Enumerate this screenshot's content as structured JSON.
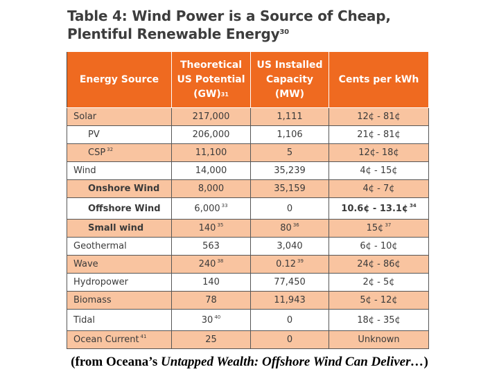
{
  "title": {
    "line1": "Table 4: Wind Power is a Source of Cheap,",
    "line2": "Plentiful Renewable Energy",
    "footnote": "30"
  },
  "table": {
    "headers": [
      {
        "line1": "Energy Source",
        "line2": "",
        "line3": "",
        "note": ""
      },
      {
        "line1": "Theoretical",
        "line2": "US Potential",
        "line3": "(GW)",
        "note": "31"
      },
      {
        "line1": "US Installed",
        "line2": "Capacity",
        "line3": "(MW)",
        "note": ""
      },
      {
        "line1": "Cents per kWh",
        "line2": "",
        "line3": "",
        "note": ""
      }
    ],
    "rows": [
      {
        "source": "Solar",
        "source_note": "",
        "potential": "217,000",
        "potential_note": "",
        "capacity": "1,111",
        "capacity_note": "",
        "cents": "12¢ - 81¢",
        "cents_note": ""
      },
      {
        "source": "PV",
        "source_note": "",
        "potential": "206,000",
        "potential_note": "",
        "capacity": "1,106",
        "capacity_note": "",
        "cents": "21¢ - 81¢",
        "cents_note": ""
      },
      {
        "source": "CSP",
        "source_note": "32",
        "potential": "11,100",
        "potential_note": "",
        "capacity": "5",
        "capacity_note": "",
        "cents": "12¢- 18¢",
        "cents_note": ""
      },
      {
        "source": "Wind",
        "source_note": "",
        "potential": "14,000",
        "potential_note": "",
        "capacity": "35,239",
        "capacity_note": "",
        "cents": "4¢ - 15¢",
        "cents_note": ""
      },
      {
        "source": "Onshore Wind",
        "source_note": "",
        "potential": "8,000",
        "potential_note": "",
        "capacity": "35,159",
        "capacity_note": "",
        "cents": "4¢ - 7¢",
        "cents_note": ""
      },
      {
        "source": "Offshore Wind",
        "source_note": "",
        "potential": "6,000",
        "potential_note": "33",
        "capacity": "0",
        "capacity_note": "",
        "cents": "10.6¢ - 13.1¢",
        "cents_note": "34"
      },
      {
        "source": "Small wind",
        "source_note": "",
        "potential": "140",
        "potential_note": "35",
        "capacity": "80",
        "capacity_note": "36",
        "cents": "15¢",
        "cents_note": "37"
      },
      {
        "source": "Geothermal",
        "source_note": "",
        "potential": "563",
        "potential_note": "",
        "capacity": "3,040",
        "capacity_note": "",
        "cents": "6¢ - 10¢",
        "cents_note": ""
      },
      {
        "source": "Wave",
        "source_note": "",
        "potential": "240",
        "potential_note": "38",
        "capacity": "0.12",
        "capacity_note": "39",
        "cents": "24¢ - 86¢",
        "cents_note": ""
      },
      {
        "source": "Hydropower",
        "source_note": "",
        "potential": "140",
        "potential_note": "",
        "capacity": "77,450",
        "capacity_note": "",
        "cents": "2¢ - 5¢",
        "cents_note": ""
      },
      {
        "source": "Biomass",
        "source_note": "",
        "potential": "78",
        "potential_note": "",
        "capacity": "11,943",
        "capacity_note": "",
        "cents": "5¢ - 12¢",
        "cents_note": ""
      },
      {
        "source": "Tidal",
        "source_note": "",
        "potential": "30",
        "potential_note": "40",
        "capacity": "0",
        "capacity_note": "",
        "cents": "18¢ - 35¢",
        "cents_note": ""
      },
      {
        "source": "Ocean Current",
        "source_note": "41",
        "potential": "25",
        "potential_note": "",
        "capacity": "0",
        "capacity_note": "",
        "cents": "Unknown",
        "cents_note": ""
      }
    ]
  },
  "caption": {
    "prefix": "(from Oceana’s ",
    "italic": "Untapped Wealth: Offshore Wind Can Deliver…",
    "suffix": ")"
  },
  "colors": {
    "header_bg": "#ef6a20",
    "highlight_row": "#f9c4a0",
    "text": "#3a3a3a"
  }
}
